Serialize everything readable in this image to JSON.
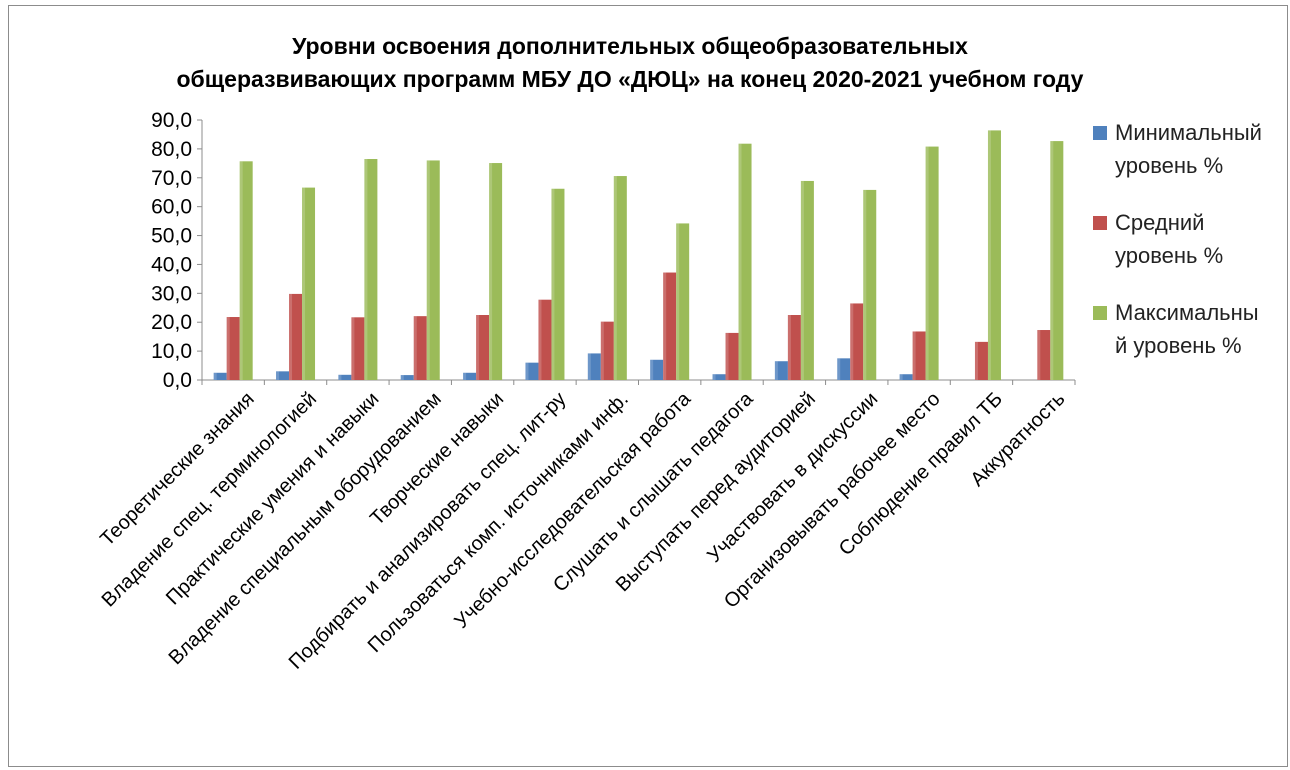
{
  "colors": {
    "series": [
      "#4f81bd",
      "#c0504d",
      "#9bbb59"
    ],
    "grid": "#8c8c8c",
    "frame": "#8c8c8c"
  },
  "chart_data": {
    "type": "bar",
    "title_lines": [
      "Уровни освоения дополнительных общеобразовательных",
      "общеразвивающих программ МБУ ДО «ДЮЦ» на конец 2020-2021 учебном году"
    ],
    "xlabel": "",
    "ylabel": "",
    "ylim": [
      0,
      90
    ],
    "yticks": [
      "0,0",
      "10,0",
      "20,0",
      "30,0",
      "40,0",
      "50,0",
      "60,0",
      "70,0",
      "80,0",
      "90,0"
    ],
    "grid": false,
    "legend_position": "right",
    "categories": [
      "Теоретические знания",
      "Владение спец. терминологией",
      "Практические умения и навыки",
      "Владение специальным оборудованием",
      "Творческие навыки",
      "Подбирать и анализировать спец. лит-ру",
      "Пользоваться комп. источниками инф.",
      "Учебно-исследовательская работа",
      "Слушать и слышать педагога",
      "Выступать перед аудиторией",
      "Участвовать в  дискуссии",
      "Организовывать рабочее место",
      "Соблюдение правил ТБ",
      "Аккуратность"
    ],
    "series": [
      {
        "name": "Минимальный\nуровень %",
        "values": [
          2.5,
          3.0,
          1.8,
          1.7,
          2.5,
          6.0,
          9.2,
          7.0,
          2.0,
          6.5,
          7.5,
          2.0,
          0,
          0
        ]
      },
      {
        "name": "Средний\nуровень %",
        "values": [
          21.8,
          29.8,
          21.7,
          22.1,
          22.5,
          27.8,
          20.2,
          37.2,
          16.3,
          22.5,
          26.5,
          16.8,
          13.2,
          17.3
        ]
      },
      {
        "name": "Максимальны\nй уровень %",
        "values": [
          75.7,
          66.6,
          76.5,
          76.0,
          75.1,
          66.2,
          70.6,
          54.2,
          81.8,
          68.9,
          65.8,
          80.8,
          86.4,
          82.7
        ]
      }
    ]
  }
}
